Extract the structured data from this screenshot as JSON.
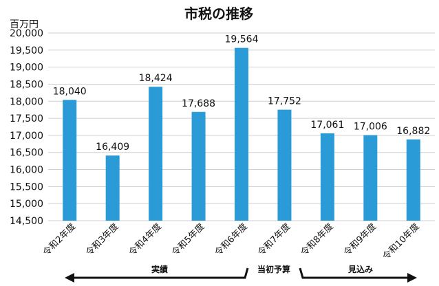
{
  "chart_data": {
    "type": "bar",
    "title": "市税の推移",
    "unit": "百万円",
    "categories": [
      "令和2年度",
      "令和3年度",
      "令和4年度",
      "令和5年度",
      "令和6年度",
      "令和7年度",
      "令和8年度",
      "令和9年度",
      "令和10年度"
    ],
    "values": [
      18040,
      16409,
      18424,
      17688,
      19564,
      17752,
      17061,
      17006,
      16882
    ],
    "value_labels": [
      "18,040",
      "16,409",
      "18,424",
      "17,688",
      "19,564",
      "17,752",
      "17,061",
      "17,006",
      "16,882"
    ],
    "ylim": [
      14500,
      20000
    ],
    "ytick_step": 500,
    "ytick_labels": [
      "14,500",
      "15,000",
      "15,500",
      "16,000",
      "16,500",
      "17,000",
      "17,500",
      "18,000",
      "18,500",
      "19,000",
      "19,500",
      "20,000"
    ],
    "grid": true,
    "bar_color": "#2a9bd6",
    "grid_color": "#cfcfcf",
    "annotations": {
      "actual": "実績",
      "initial_budget": "当初予算",
      "forecast": "見込み"
    }
  }
}
